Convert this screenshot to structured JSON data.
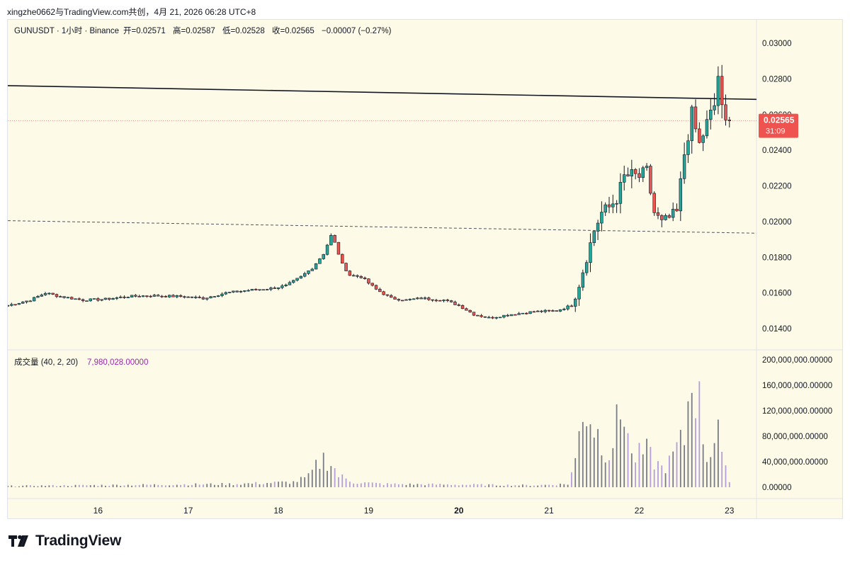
{
  "header": {
    "share_text": "xingzhe0662与TradingView.com共创，4月 21, 2026 06:28 UTC+8"
  },
  "legend": {
    "symbol": "GUNUSDT · 1小时 · Binance",
    "open_label": "开",
    "open_value": "=0.02571",
    "high_label": "高",
    "high_value": "=0.02587",
    "low_label": "低",
    "low_value": "=0.02528",
    "close_label": "收",
    "close_value": "=0.02565",
    "change": "−0.00007 (−0.27%)",
    "volume_label": "成交量 (40, 2, 20)",
    "volume_value": "7,980,028.00000"
  },
  "price_tag": {
    "price": "0.02565",
    "countdown": "31:09"
  },
  "colors": {
    "up": "#26a69a",
    "down": "#ef5350",
    "up_body": "#26a69a",
    "down_body": "#ef5350",
    "background": "#fdfbe8",
    "volume_grey": "#787b86",
    "volume_purple": "#b39ddb",
    "price_tag": "#ef5350"
  },
  "footer": {
    "brand": "TradingView",
    "logo_icon": "tradingview-logo-icon"
  },
  "chart_data": {
    "type": "candlestick",
    "symbol": "GUNUSDT",
    "interval": "1小时",
    "exchange": "Binance",
    "price_axis": {
      "ylim": [
        0.013,
        0.031
      ],
      "ticks": [
        "0.03000",
        "0.02800",
        "0.02600",
        "0.02400",
        "0.02200",
        "0.02000",
        "0.01800",
        "0.01600",
        "0.01400"
      ],
      "tick_values": [
        0.03,
        0.028,
        0.026,
        0.024,
        0.022,
        0.02,
        0.018,
        0.016,
        0.014
      ]
    },
    "volume_axis": {
      "ylim": [
        0,
        210000000
      ],
      "ticks": [
        "200,000,000.00000",
        "160,000,000.00000",
        "120,000,000.00000",
        "80,000,000.00000",
        "40,000,000.00000",
        "0.00000"
      ],
      "tick_values": [
        200000000,
        160000000,
        120000000,
        80000000,
        40000000,
        0
      ]
    },
    "time_axis": {
      "labels": [
        "16",
        "17",
        "18",
        "19",
        "20",
        "21",
        "22",
        "23"
      ],
      "bold_label": "20",
      "start_hour_offset": 15.0,
      "end_hour_offset": 23.3
    },
    "trend_lines": [
      {
        "style": "solid",
        "from": {
          "day": 15.0,
          "price": 0.02762
        },
        "to": {
          "day": 23.3,
          "price": 0.02685
        }
      },
      {
        "style": "dashed",
        "from": {
          "day": 15.0,
          "price": 0.02005
        },
        "to": {
          "day": 23.3,
          "price": 0.01935
        }
      }
    ],
    "last_price": 0.02565,
    "candles_start_day": 15.0,
    "candle_hours": 1,
    "anchors": [
      [
        0,
        0.0153
      ],
      [
        6,
        0.0156
      ],
      [
        10,
        0.016
      ],
      [
        14,
        0.0158
      ],
      [
        20,
        0.0156
      ],
      [
        26,
        0.01565
      ],
      [
        32,
        0.0158
      ],
      [
        38,
        0.01585
      ],
      [
        46,
        0.0158
      ],
      [
        52,
        0.0157
      ],
      [
        58,
        0.016
      ],
      [
        64,
        0.01615
      ],
      [
        70,
        0.01625
      ],
      [
        74,
        0.0164
      ],
      [
        78,
        0.0169
      ],
      [
        81,
        0.0174
      ],
      [
        84,
        0.0182
      ],
      [
        86,
        0.0192
      ],
      [
        87,
        0.0188
      ],
      [
        89,
        0.0176
      ],
      [
        91,
        0.017
      ],
      [
        94,
        0.0169
      ],
      [
        98,
        0.0162
      ],
      [
        102,
        0.0157
      ],
      [
        106,
        0.0156
      ],
      [
        110,
        0.0157
      ],
      [
        116,
        0.0156
      ],
      [
        120,
        0.0153
      ],
      [
        124,
        0.0148
      ],
      [
        128,
        0.0146
      ],
      [
        134,
        0.0148
      ],
      [
        140,
        0.01495
      ],
      [
        146,
        0.015
      ],
      [
        150,
        0.0153
      ],
      [
        152,
        0.0165
      ],
      [
        154,
        0.018
      ],
      [
        156,
        0.0195
      ],
      [
        158,
        0.0205
      ],
      [
        160,
        0.0208
      ],
      [
        162,
        0.0213
      ],
      [
        164,
        0.0225
      ],
      [
        166,
        0.0226
      ],
      [
        168,
        0.0225
      ],
      [
        170,
        0.0228
      ],
      [
        172,
        0.0205
      ],
      [
        174,
        0.0199
      ],
      [
        176,
        0.0202
      ],
      [
        178,
        0.0205
      ],
      [
        180,
        0.0238
      ],
      [
        182,
        0.026
      ],
      [
        184,
        0.0243
      ],
      [
        186,
        0.0255
      ],
      [
        188,
        0.0265
      ],
      [
        189,
        0.0282
      ],
      [
        190,
        0.0262
      ],
      [
        191,
        0.0255
      ],
      [
        192,
        0.02565
      ]
    ],
    "volume_anchors": [
      [
        0,
        2
      ],
      [
        20,
        3
      ],
      [
        40,
        4
      ],
      [
        60,
        5
      ],
      [
        76,
        8
      ],
      [
        80,
        16
      ],
      [
        82,
        32
      ],
      [
        84,
        45
      ],
      [
        86,
        38
      ],
      [
        88,
        18
      ],
      [
        92,
        8
      ],
      [
        100,
        5
      ],
      [
        120,
        4
      ],
      [
        140,
        3
      ],
      [
        149,
        5
      ],
      [
        151,
        40
      ],
      [
        153,
        130
      ],
      [
        155,
        110
      ],
      [
        158,
        70
      ],
      [
        160,
        55
      ],
      [
        162,
        95
      ],
      [
        164,
        128
      ],
      [
        166,
        45
      ],
      [
        170,
        55
      ],
      [
        172,
        40
      ],
      [
        174,
        30
      ],
      [
        176,
        38
      ],
      [
        178,
        60
      ],
      [
        180,
        75
      ],
      [
        182,
        190
      ],
      [
        184,
        128
      ],
      [
        186,
        45
      ],
      [
        188,
        80
      ],
      [
        189,
        105
      ],
      [
        190,
        42
      ],
      [
        191,
        25
      ],
      [
        192,
        8
      ]
    ]
  }
}
